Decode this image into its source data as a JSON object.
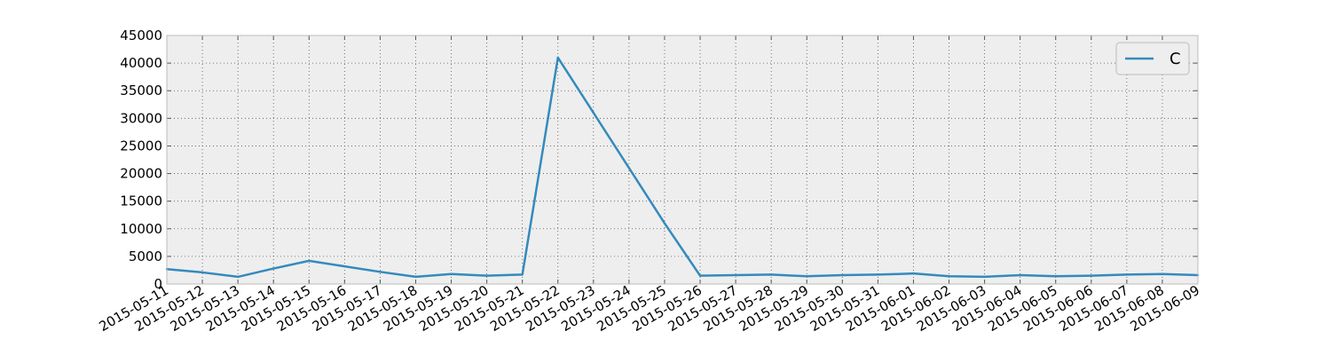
{
  "chart_data": {
    "type": "line",
    "x": [
      "2015-05-11",
      "2015-05-12",
      "2015-05-13",
      "2015-05-14",
      "2015-05-15",
      "2015-05-16",
      "2015-05-17",
      "2015-05-18",
      "2015-05-19",
      "2015-05-20",
      "2015-05-21",
      "2015-05-22",
      "2015-05-23",
      "2015-05-24",
      "2015-05-25",
      "2015-05-26",
      "2015-05-27",
      "2015-05-28",
      "2015-05-29",
      "2015-05-30",
      "2015-05-31",
      "2015-06-01",
      "2015-06-02",
      "2015-06-03",
      "2015-06-04",
      "2015-06-05",
      "2015-06-06",
      "2015-06-07",
      "2015-06-08",
      "2015-06-09"
    ],
    "series": [
      {
        "name": "C",
        "color": "#348abd",
        "values": [
          2700,
          2100,
          1300,
          2800,
          4200,
          3200,
          2200,
          1300,
          1800,
          1500,
          1700,
          41000,
          31000,
          21000,
          11000,
          1500,
          1600,
          1700,
          1400,
          1600,
          1700,
          1900,
          1400,
          1300,
          1600,
          1400,
          1500,
          1700,
          1800,
          1600
        ]
      }
    ],
    "yticks": [
      0,
      5000,
      10000,
      15000,
      20000,
      25000,
      30000,
      35000,
      40000,
      45000
    ],
    "ylim": [
      0,
      45000
    ],
    "grid": true,
    "legend_position": "top-right",
    "plot_background": "#eeeeee",
    "xlabel": "",
    "ylabel": "",
    "title": ""
  }
}
